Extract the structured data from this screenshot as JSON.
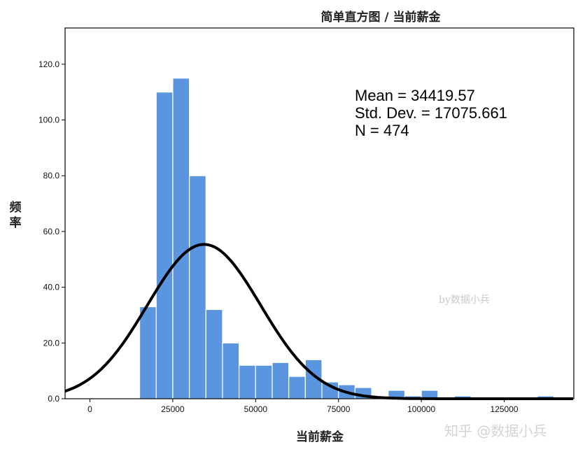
{
  "chart_data": {
    "type": "bar",
    "title": "简单直方图 / 当前薪金",
    "xlabel": "当前薪金",
    "ylabel": "频率",
    "xlim": [
      -7500,
      146000
    ],
    "ylim": [
      0,
      133
    ],
    "x_ticks": [
      "0",
      "25000",
      "50000",
      "75000",
      "100000",
      "125000"
    ],
    "y_ticks": [
      "0.0",
      "20.0",
      "40.0",
      "60.0",
      "80.0",
      "100.0",
      "120.0"
    ],
    "bin_width": 5000,
    "bins": [
      {
        "start": 15000,
        "count": 33
      },
      {
        "start": 20000,
        "count": 110
      },
      {
        "start": 25000,
        "count": 115
      },
      {
        "start": 30000,
        "count": 80
      },
      {
        "start": 35000,
        "count": 32
      },
      {
        "start": 40000,
        "count": 20
      },
      {
        "start": 45000,
        "count": 12
      },
      {
        "start": 50000,
        "count": 12
      },
      {
        "start": 55000,
        "count": 13
      },
      {
        "start": 60000,
        "count": 8
      },
      {
        "start": 65000,
        "count": 14
      },
      {
        "start": 70000,
        "count": 6
      },
      {
        "start": 75000,
        "count": 5
      },
      {
        "start": 80000,
        "count": 4
      },
      {
        "start": 85000,
        "count": 0
      },
      {
        "start": 90000,
        "count": 3
      },
      {
        "start": 95000,
        "count": 1
      },
      {
        "start": 100000,
        "count": 3
      },
      {
        "start": 105000,
        "count": 0
      },
      {
        "start": 110000,
        "count": 1
      },
      {
        "start": 115000,
        "count": 0
      },
      {
        "start": 120000,
        "count": 0
      },
      {
        "start": 125000,
        "count": 0
      },
      {
        "start": 130000,
        "count": 0
      },
      {
        "start": 135000,
        "count": 1
      }
    ],
    "normal_curve": {
      "mean": 34419.57,
      "sd": 17075.661,
      "n": 474
    },
    "stats_lines": [
      "Mean = 34419.57",
      "Std. Dev. = 17075.661",
      "N = 474"
    ],
    "bar_color": "#5b95e0",
    "bar_edge_color": "#ffffff",
    "curve_color": "#000000",
    "grid": false,
    "legend": "none"
  },
  "watermarks": {
    "inner": "by数据小兵",
    "corner": "知乎 @数据小兵"
  }
}
